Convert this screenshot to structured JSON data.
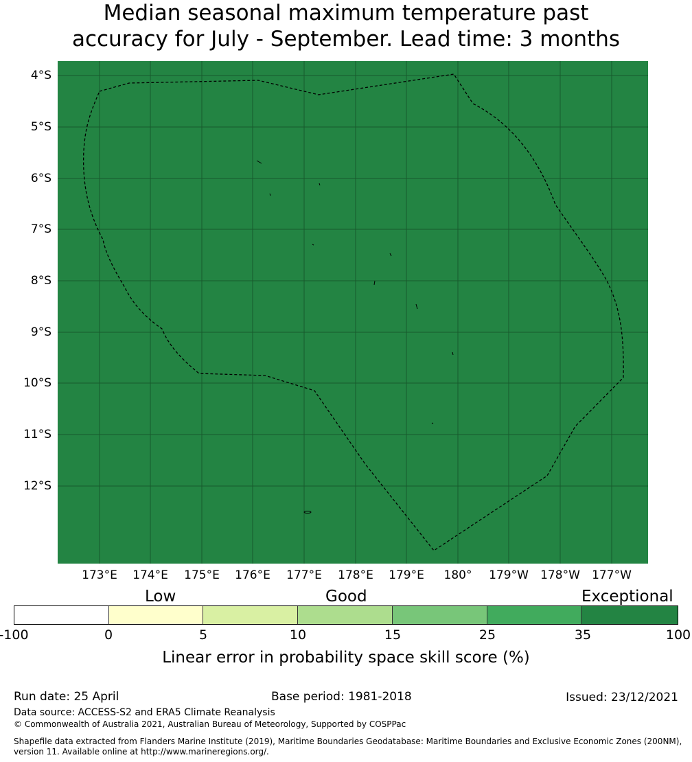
{
  "title": {
    "line1": "Median seasonal maximum temperature past",
    "line2": "accuracy for July - September. Lead time: 3 months"
  },
  "map": {
    "fill_color": "#238443",
    "grid_color": "#15532a",
    "latitude_labels": [
      "4°S",
      "5°S",
      "6°S",
      "7°S",
      "8°S",
      "9°S",
      "10°S",
      "11°S",
      "12°S"
    ],
    "longitude_labels": [
      "173°E",
      "174°E",
      "175°E",
      "176°E",
      "177°E",
      "178°E",
      "179°E",
      "180°",
      "179°W",
      "178°W",
      "177°W"
    ],
    "boundary_style": "dashed black line (exclusive economic zone)"
  },
  "legend": {
    "categories": [
      "Low",
      "Good",
      "Exceptional"
    ],
    "tick_labels": [
      "-100",
      "0",
      "5",
      "10",
      "15",
      "25",
      "35",
      "100"
    ],
    "colors": [
      "#ffffff",
      "#ffffcc",
      "#d9f0a3",
      "#addd8e",
      "#78c679",
      "#41ab5d",
      "#238443"
    ],
    "title": "Linear error in probability space skill score (%)"
  },
  "footer": {
    "run_date": "Run date: 25 April",
    "base_period": "Base period: 1981-2018",
    "issued": "Issued: 23/12/2021",
    "data_source": "Data source: ACCESS-S2 and ERA5 Climate Reanalysis",
    "copyright": "© Commonwealth of Australia 2021, Australian Bureau of Meteorology, Supported by COSPPac",
    "shapefile_line1": "Shapefile data extracted from Flanders Marine Institute (2019), Maritime Boundaries Geodatabase: Maritime Boundaries and Exclusive Economic Zones (200NM),",
    "shapefile_line2": "version 11. Available online at http://www.marineregions.org/."
  }
}
